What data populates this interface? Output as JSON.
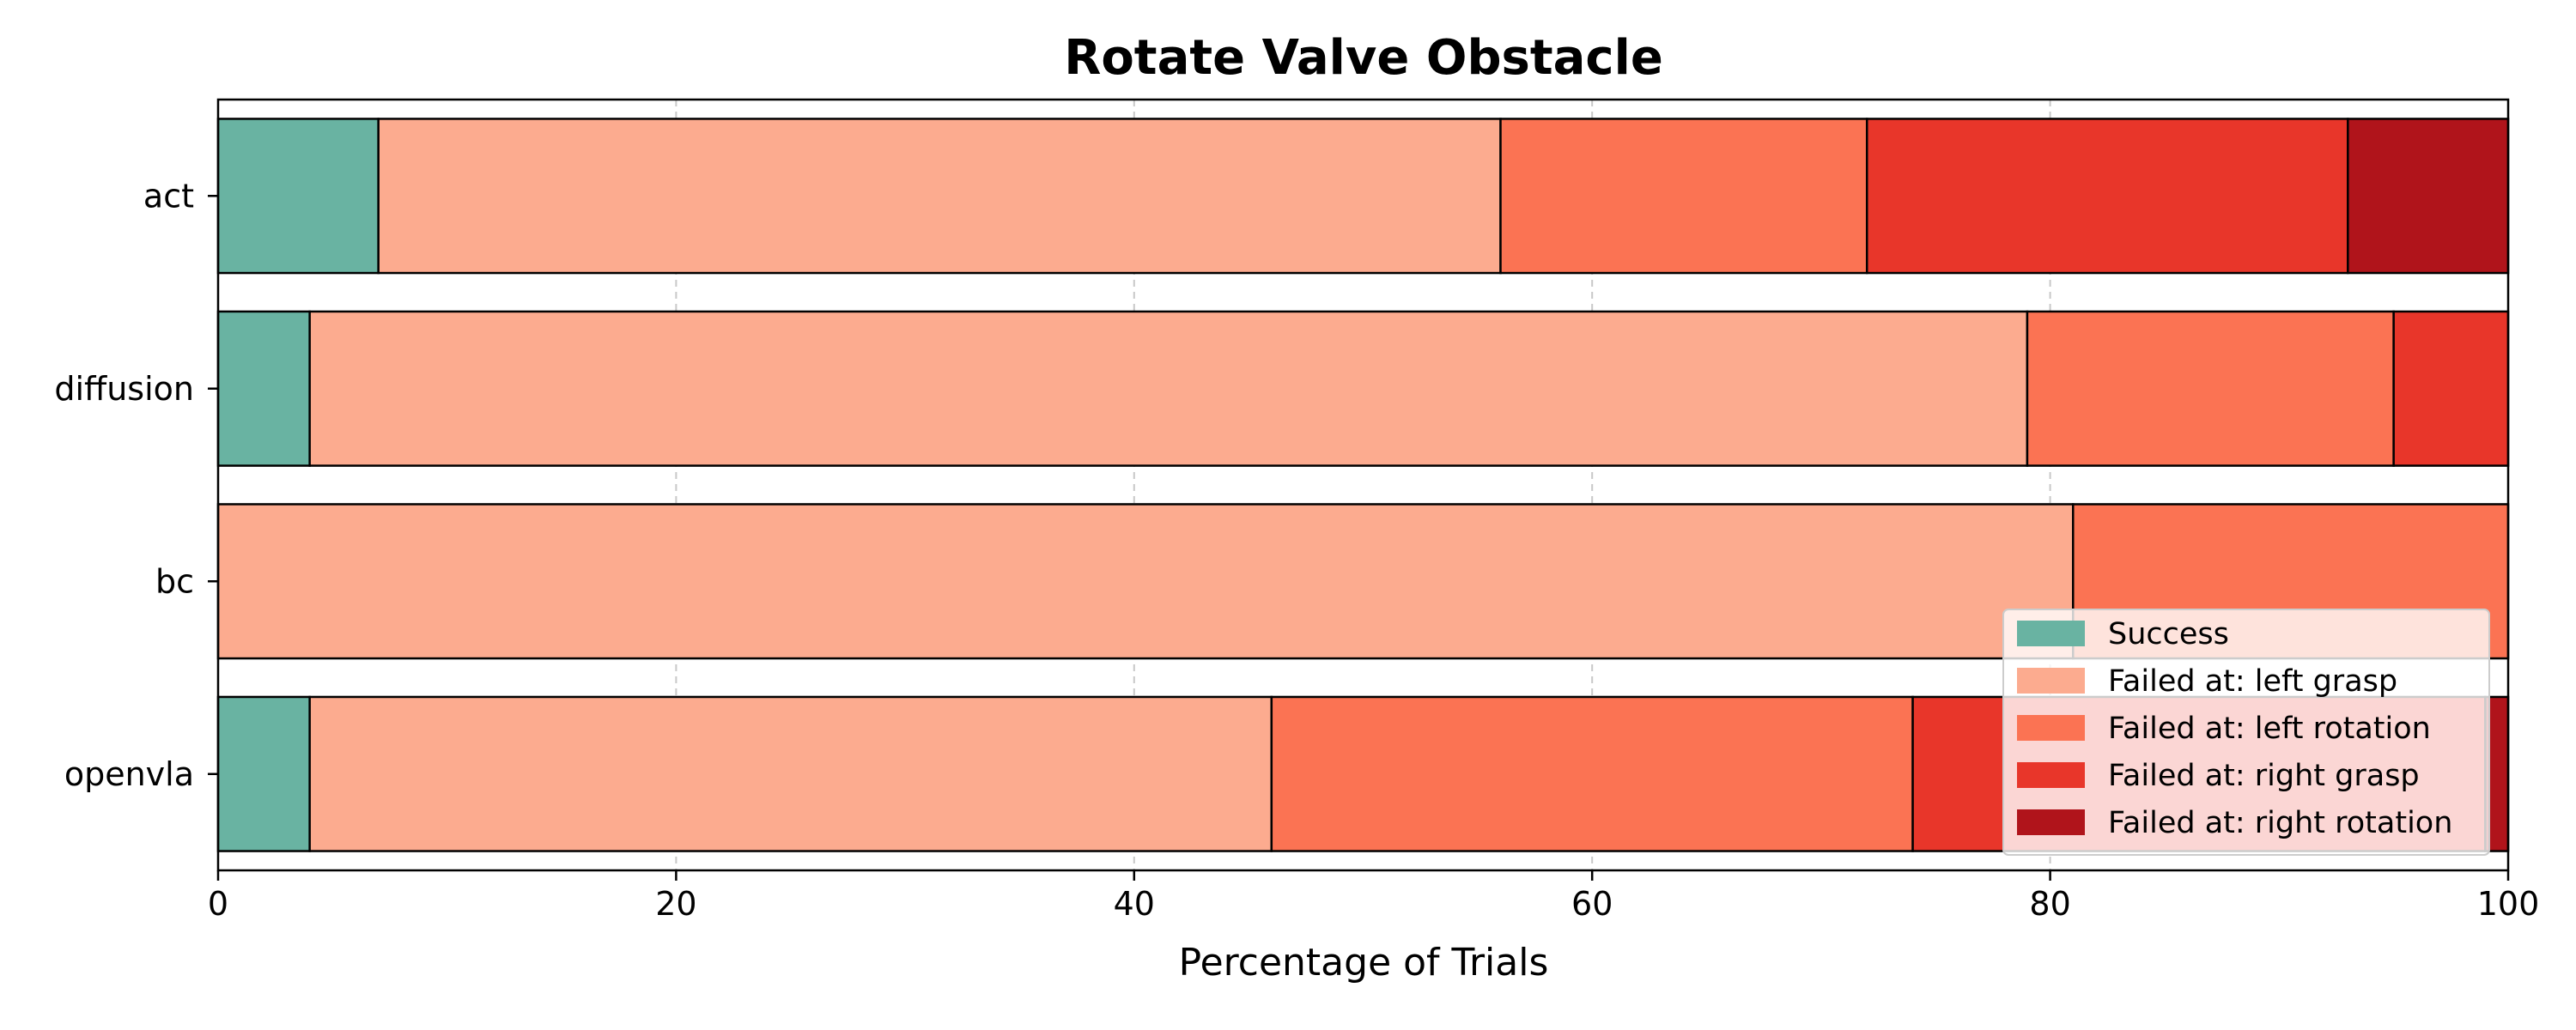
{
  "chart_data": {
    "type": "bar",
    "orientation": "horizontal",
    "stacked": true,
    "title": "Rotate Valve Obstacle",
    "xlabel": "Percentage of Trials",
    "ylabel": "",
    "xlim": [
      0,
      100
    ],
    "xticks": [
      "0",
      "20",
      "40",
      "60",
      "80",
      "100"
    ],
    "grid": "x-dashed",
    "legend_position": "lower-right",
    "categories": [
      "act",
      "diffusion",
      "bc",
      "openvla"
    ],
    "series": [
      {
        "name": "Success",
        "color": "#69b3a2",
        "values": [
          7,
          4,
          0,
          4
        ]
      },
      {
        "name": "Failed at: left grasp",
        "color": "#fcab8f",
        "values": [
          49,
          75,
          81,
          42
        ]
      },
      {
        "name": "Failed at: left rotation",
        "color": "#fb7353",
        "values": [
          16,
          16,
          19,
          28
        ]
      },
      {
        "name": "Failed at: right grasp",
        "color": "#e8362a",
        "values": [
          21,
          5,
          0,
          25
        ]
      },
      {
        "name": "Failed at: right rotation",
        "color": "#b0141b",
        "values": [
          7,
          0,
          0,
          1
        ]
      }
    ]
  }
}
